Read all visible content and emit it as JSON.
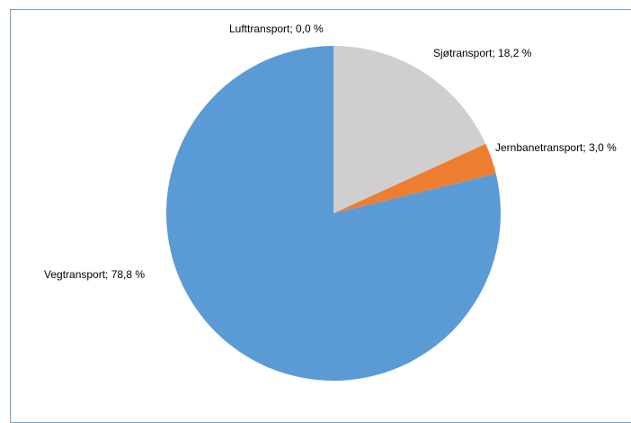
{
  "chart_data": {
    "type": "pie",
    "categories": [
      "Lufttransport",
      "Sjøtransport",
      "Jernbanetransport",
      "Vegtransport"
    ],
    "values": [
      0.0,
      18.2,
      3.0,
      78.8
    ],
    "labels": [
      "Lufttransport; 0,0 %",
      "Sjøtransport; 18,2 %",
      "Jernbanetransport; 3,0 %",
      "Vegtransport; 78,8 %"
    ],
    "colors": [
      "#a5a5a5",
      "#d0cece",
      "#ed7d31",
      "#5b9bd5"
    ],
    "start": "top",
    "direction": "clockwise",
    "legend": "none"
  }
}
